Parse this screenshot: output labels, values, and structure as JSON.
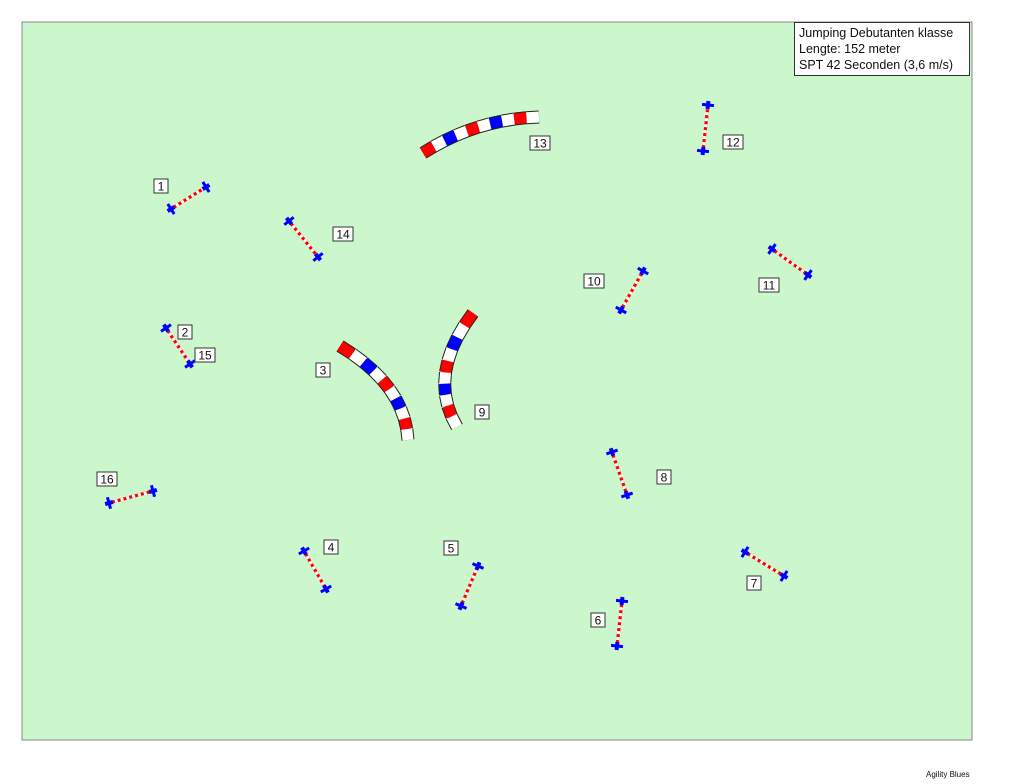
{
  "info": {
    "title": "Jumping Debutanten klasse",
    "length": "Lengte: 152  meter",
    "spt": "SPT 42 Seconden (3,6 m/s)"
  },
  "footer": "Agility Blues",
  "colors": {
    "field": "#ccf7cc",
    "jump_red": "#ff0000",
    "jump_blue": "#0000ff",
    "tunnel_red": "#ff0000",
    "tunnel_blue": "#0000ff",
    "tunnel_white": "#ffffff"
  },
  "jumps": [
    {
      "number": "1"
    },
    {
      "number": "2 / 15"
    },
    {
      "number": "4"
    },
    {
      "number": "5"
    },
    {
      "number": "6"
    },
    {
      "number": "7"
    },
    {
      "number": "8"
    },
    {
      "number": "10"
    },
    {
      "number": "11"
    },
    {
      "number": "12"
    },
    {
      "number": "14"
    },
    {
      "number": "16"
    }
  ],
  "tunnels": [
    {
      "number": "3"
    },
    {
      "number": "9"
    },
    {
      "number": "13"
    }
  ],
  "labels": [
    "1",
    "2",
    "15",
    "3",
    "4",
    "5",
    "6",
    "7",
    "8",
    "9",
    "10",
    "11",
    "12",
    "13",
    "14",
    "16"
  ]
}
